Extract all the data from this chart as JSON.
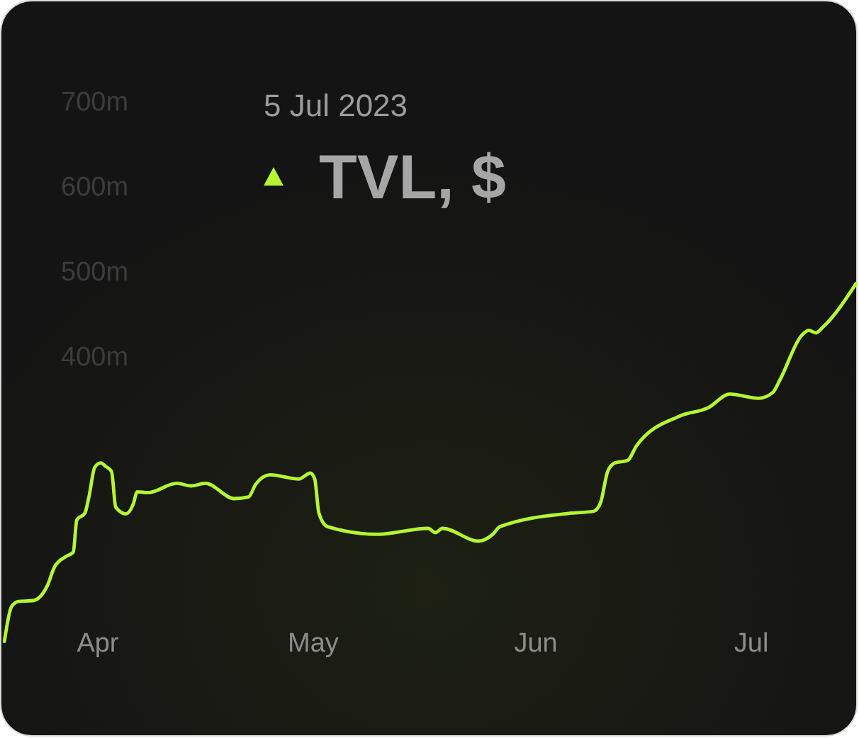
{
  "chart_data": {
    "type": "line",
    "title": "5 Jul 2023",
    "xlim": [
      "2023-03-18T14:00",
      "2023-07-15T19:00"
    ],
    "xticks": [
      {
        "value": "2023-04-01",
        "label": "Apr"
      },
      {
        "value": "2023-05-01",
        "label": "May"
      },
      {
        "value": "2023-06-01",
        "label": "Jun"
      },
      {
        "value": "2023-07-01",
        "label": "Jul"
      }
    ],
    "ylim": [
      -45,
      820
    ],
    "yticks": [
      {
        "value": 400,
        "label": "400m"
      },
      {
        "value": 500,
        "label": "500m"
      },
      {
        "value": 600,
        "label": "600m"
      },
      {
        "value": 700,
        "label": "700m"
      }
    ],
    "x": [
      "2023-03-19",
      "2023-03-20",
      "2023-03-21",
      "2023-03-23",
      "2023-03-25",
      "2023-03-26",
      "2023-03-27T14:00",
      "2023-03-28T14:00",
      "2023-03-29T02:00",
      "2023-03-30T05:00",
      "2023-03-30T19:00",
      "2023-03-31T14:00",
      "2023-04-01T10:00",
      "2023-04-02T02:00",
      "2023-04-02T22:00",
      "2023-04-03T12:00",
      "2023-04-04T22:00",
      "2023-04-05T22:00",
      "2023-04-06T12:00",
      "2023-04-08",
      "2023-04-12",
      "2023-04-14",
      "2023-04-16",
      "2023-04-20",
      "2023-04-22",
      "2023-04-23",
      "2023-04-25",
      "2023-04-29",
      "2023-04-30T14:00",
      "2023-05-01T05:00",
      "2023-05-01T19:00",
      "2023-05-03",
      "2023-05-10",
      "2023-05-17",
      "2023-05-18",
      "2023-05-19",
      "2023-05-24",
      "2023-05-26",
      "2023-05-27",
      "2023-06-06",
      "2023-06-09",
      "2023-06-10",
      "2023-06-11",
      "2023-06-12",
      "2023-06-13T19:00",
      "2023-06-15",
      "2023-06-21",
      "2023-06-25",
      "2023-06-28",
      "2023-07-02",
      "2023-07-04",
      "2023-07-05",
      "2023-07-08",
      "2023-07-09",
      "2023-07-10",
      "2023-07-11",
      "2023-07-15T14:00"
    ],
    "series": [
      {
        "name": "TVL, $",
        "color": "#b5f531",
        "values": [
          67,
          108,
          114,
          115,
          133,
          155,
          167,
          172,
          210,
          218,
          238,
          272,
          277,
          273,
          267,
          225,
          217,
          228,
          243,
          242,
          253,
          250,
          253,
          235,
          237,
          252,
          263,
          258,
          265,
          258,
          218,
          202,
          193,
          200,
          195,
          200,
          185,
          193,
          202,
          218,
          220,
          230,
          267,
          277,
          280,
          297,
          332,
          342,
          358,
          353,
          360,
          375,
          427,
          433,
          430,
          437,
          488
        ]
      }
    ],
    "legend": "top left",
    "line_style": "solid"
  }
}
